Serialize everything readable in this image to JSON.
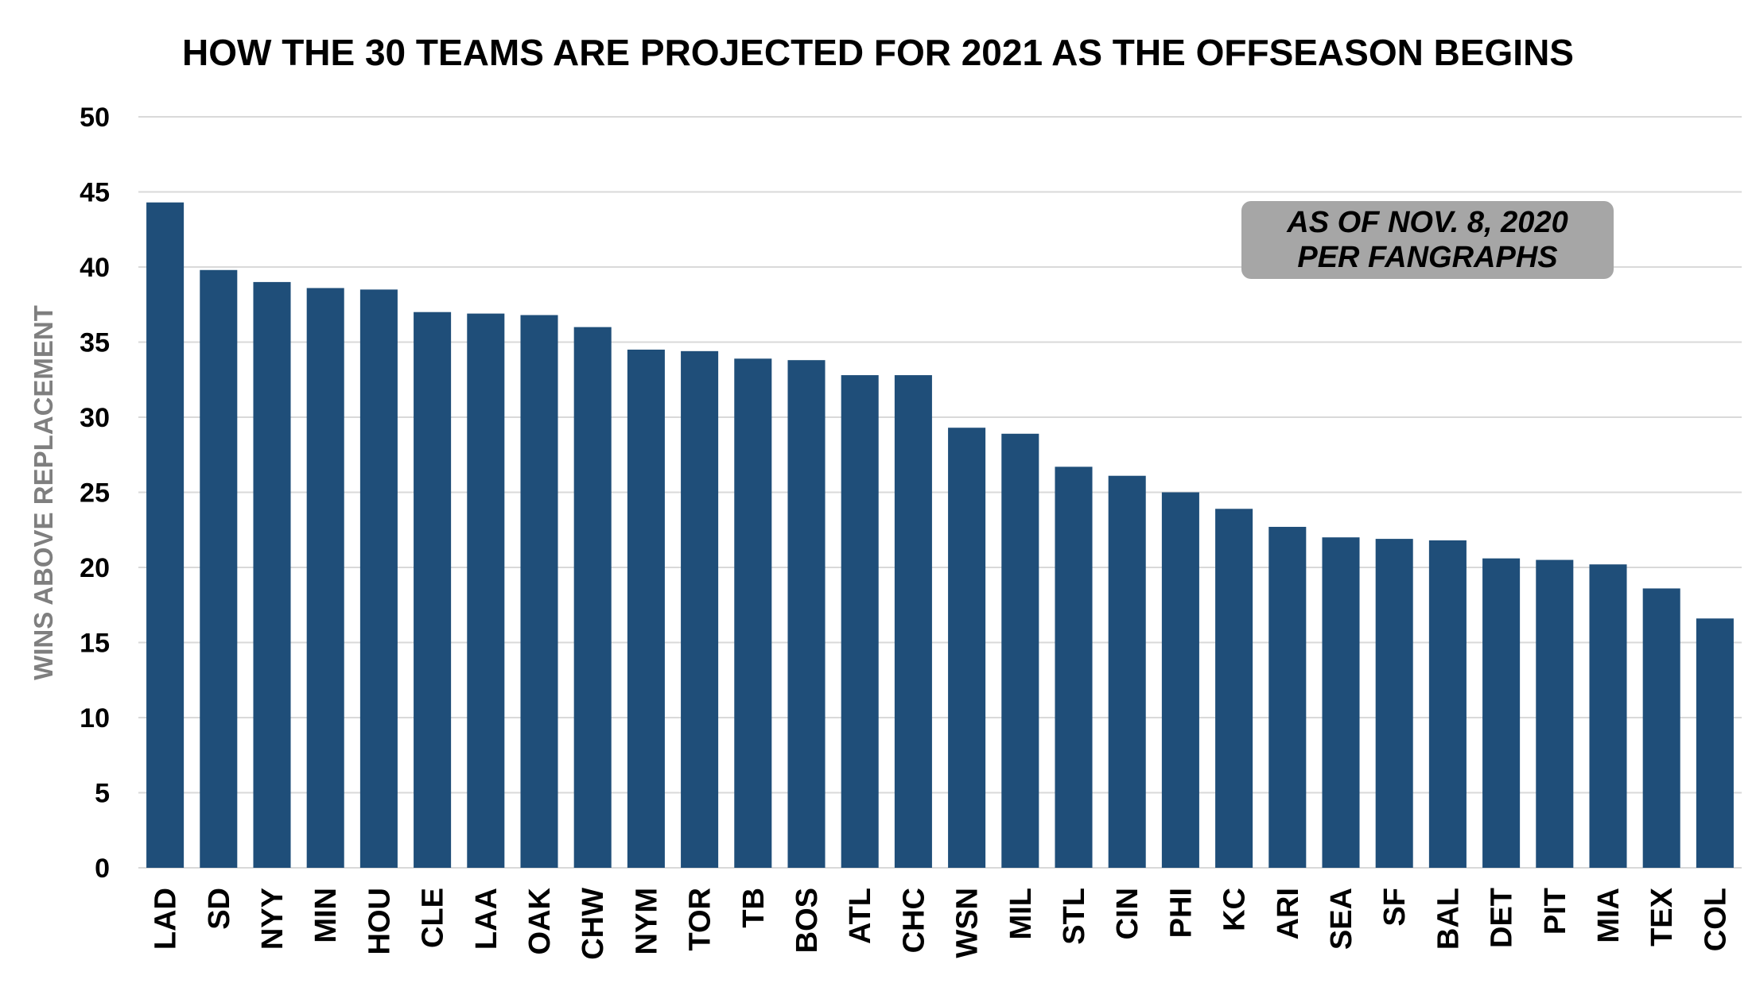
{
  "chart_data": {
    "type": "bar",
    "title": "HOW THE 30 TEAMS ARE PROJECTED FOR 2021 AS THE OFFSEASON BEGINS",
    "ylabel": "WINS ABOVE REPLACEMENT",
    "xlabel": "",
    "ylim": [
      0,
      50
    ],
    "yticks": [
      0,
      5,
      10,
      15,
      20,
      25,
      30,
      35,
      40,
      45,
      50
    ],
    "grid": true,
    "bar_color": "#1f4e79",
    "categories": [
      "LAD",
      "SD",
      "NYY",
      "MIN",
      "HOU",
      "CLE",
      "LAA",
      "OAK",
      "CHW",
      "NYM",
      "TOR",
      "TB",
      "BOS",
      "ATL",
      "CHC",
      "WSN",
      "MIL",
      "STL",
      "CIN",
      "PHI",
      "KC",
      "ARI",
      "SEA",
      "SF",
      "BAL",
      "DET",
      "PIT",
      "MIA",
      "TEX",
      "COL"
    ],
    "values": [
      44.3,
      39.8,
      39.0,
      38.6,
      38.5,
      37.0,
      36.9,
      36.8,
      36.0,
      34.5,
      34.4,
      33.9,
      33.8,
      32.8,
      32.8,
      29.3,
      28.9,
      26.7,
      26.1,
      25.0,
      23.9,
      22.7,
      22.0,
      21.9,
      21.8,
      20.6,
      20.5,
      20.2,
      18.6,
      16.6
    ],
    "annotation": {
      "line1": "AS OF NOV. 8, 2020",
      "line2": "PER FANGRAPHS",
      "background": "#a6a6a6"
    }
  }
}
